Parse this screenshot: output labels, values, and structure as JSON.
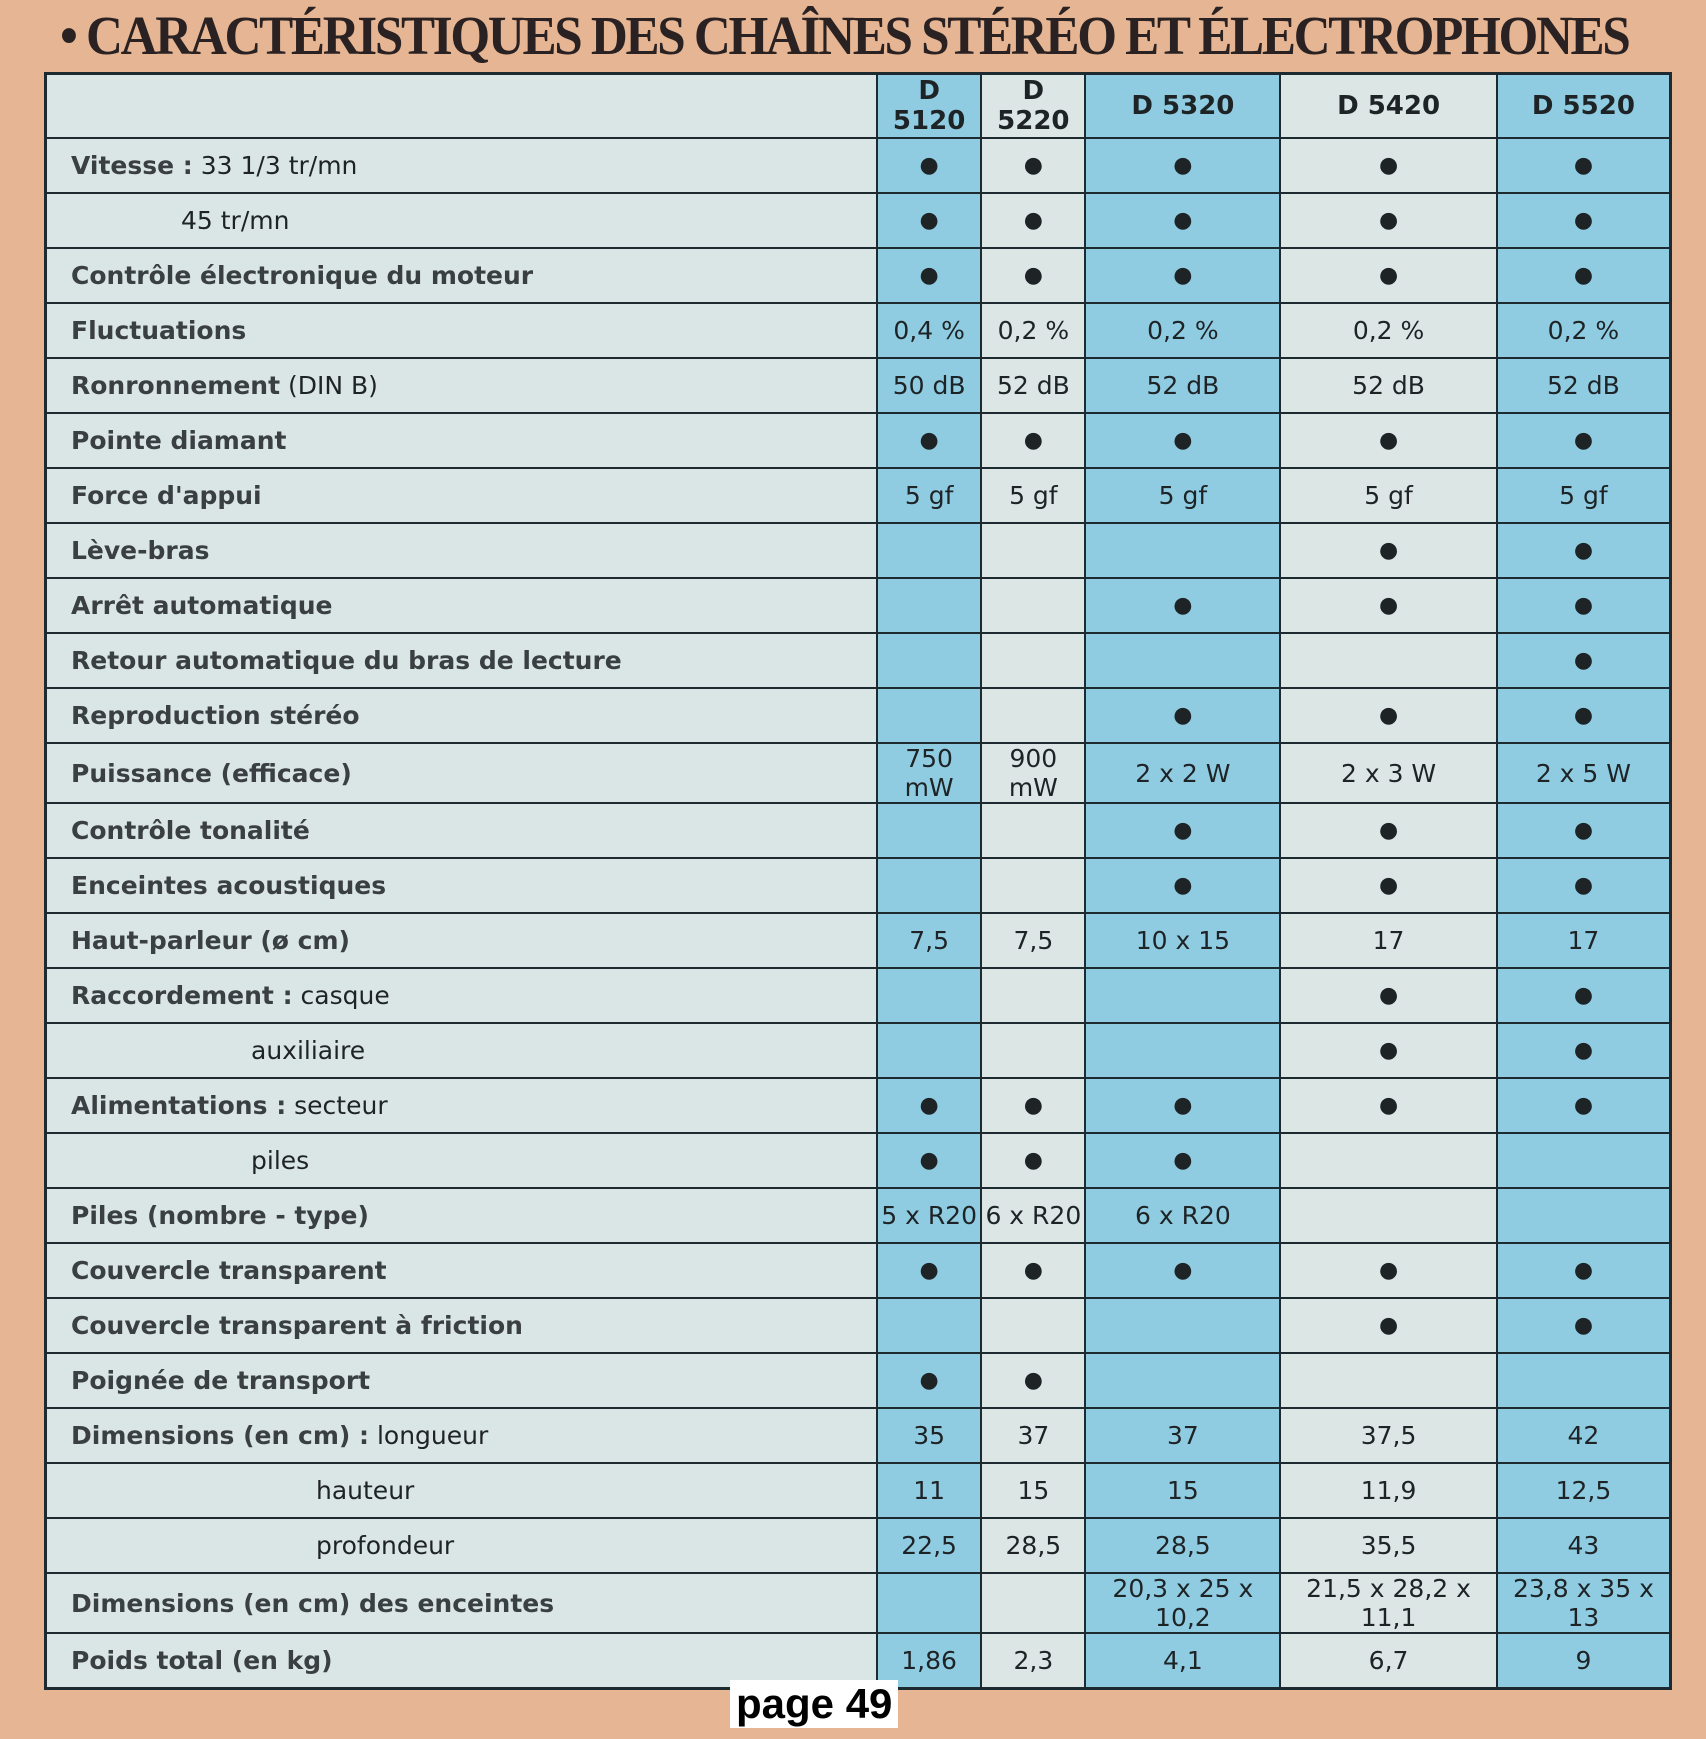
{
  "title": "• CARACTÉRISTIQUES DES CHAÎNES STÉRÉO ET ÉLECTROPHONES",
  "models": [
    "D 5120",
    "D 5220",
    "D 5320",
    "D 5420",
    "D 5520"
  ],
  "colors": {
    "blue_column": "#8fcce2",
    "light_column": "#dbe6e5",
    "page_background": "#e6b594"
  },
  "dot_symbol": "●",
  "rows": [
    {
      "bold": "Vitesse :",
      "light": " 33 1/3 tr/mn",
      "indent": 0,
      "values": [
        "●",
        "●",
        "●",
        "●",
        "●"
      ]
    },
    {
      "bold": "",
      "light": "45 tr/mn",
      "indent": 1,
      "values": [
        "●",
        "●",
        "●",
        "●",
        "●"
      ]
    },
    {
      "bold": "Contrôle électronique du moteur",
      "light": "",
      "indent": 0,
      "values": [
        "●",
        "●",
        "●",
        "●",
        "●"
      ]
    },
    {
      "bold": "Fluctuations",
      "light": "",
      "indent": 0,
      "values": [
        "0,4 %",
        "0,2 %",
        "0,2 %",
        "0,2 %",
        "0,2 %"
      ]
    },
    {
      "bold": "Ronronnement",
      "light": " (DIN B)",
      "indent": 0,
      "values": [
        "50 dB",
        "52 dB",
        "52 dB",
        "52 dB",
        "52 dB"
      ]
    },
    {
      "bold": "Pointe diamant",
      "light": "",
      "indent": 0,
      "values": [
        "●",
        "●",
        "●",
        "●",
        "●"
      ]
    },
    {
      "bold": "Force d'appui",
      "light": "",
      "indent": 0,
      "values": [
        "5 gf",
        "5 gf",
        "5 gf",
        "5 gf",
        "5 gf"
      ]
    },
    {
      "bold": "Lève-bras",
      "light": "",
      "indent": 0,
      "values": [
        "",
        "",
        "",
        "●",
        "●"
      ]
    },
    {
      "bold": "Arrêt automatique",
      "light": "",
      "indent": 0,
      "values": [
        "",
        "",
        "●",
        "●",
        "●"
      ]
    },
    {
      "bold": "Retour automatique du bras de lecture",
      "light": "",
      "indent": 0,
      "values": [
        "",
        "",
        "",
        "",
        "●"
      ]
    },
    {
      "bold": "Reproduction stéréo",
      "light": "",
      "indent": 0,
      "values": [
        "",
        "",
        "●",
        "●",
        "●"
      ]
    },
    {
      "bold": "Puissance (efficace)",
      "light": "",
      "indent": 0,
      "values": [
        "750 mW",
        "900 mW",
        "2 x 2 W",
        "2 x 3 W",
        "2 x 5 W"
      ]
    },
    {
      "bold": "Contrôle tonalité",
      "light": "",
      "indent": 0,
      "values": [
        "",
        "",
        "●",
        "●",
        "●"
      ]
    },
    {
      "bold": "Enceintes acoustiques",
      "light": "",
      "indent": 0,
      "values": [
        "",
        "",
        "●",
        "●",
        "●"
      ]
    },
    {
      "bold": "Haut-parleur (ø cm)",
      "light": "",
      "indent": 0,
      "values": [
        "7,5",
        "7,5",
        "10 x 15",
        "17",
        "17"
      ]
    },
    {
      "bold": "Raccordement :",
      "light": " casque",
      "indent": 0,
      "values": [
        "",
        "",
        "",
        "●",
        "●"
      ]
    },
    {
      "bold": "",
      "light": "auxiliaire",
      "indent": 2,
      "values": [
        "",
        "",
        "",
        "●",
        "●"
      ]
    },
    {
      "bold": "Alimentations :",
      "light": " secteur",
      "indent": 0,
      "values": [
        "●",
        "●",
        "●",
        "●",
        "●"
      ]
    },
    {
      "bold": "",
      "light": "piles",
      "indent": 2,
      "values": [
        "●",
        "●",
        "●",
        "",
        ""
      ]
    },
    {
      "bold": "Piles (nombre - type)",
      "light": "",
      "indent": 0,
      "values": [
        "5 x R20",
        "6 x R20",
        "6 x R20",
        "",
        ""
      ]
    },
    {
      "bold": "Couvercle transparent",
      "light": "",
      "indent": 0,
      "values": [
        "●",
        "●",
        "●",
        "●",
        "●"
      ]
    },
    {
      "bold": "Couvercle transparent à friction",
      "light": "",
      "indent": 0,
      "values": [
        "",
        "",
        "",
        "●",
        "●"
      ]
    },
    {
      "bold": "Poignée de transport",
      "light": "",
      "indent": 0,
      "values": [
        "●",
        "●",
        "",
        "",
        ""
      ]
    },
    {
      "bold": "Dimensions (en cm) :",
      "light": " longueur",
      "indent": 0,
      "values": [
        "35",
        "37",
        "37",
        "37,5",
        "42"
      ]
    },
    {
      "bold": "",
      "light": "hauteur",
      "indent": 3,
      "values": [
        "11",
        "15",
        "15",
        "11,9",
        "12,5"
      ]
    },
    {
      "bold": "",
      "light": "profondeur",
      "indent": 3,
      "values": [
        "22,5",
        "28,5",
        "28,5",
        "35,5",
        "43"
      ]
    },
    {
      "bold": "Dimensions (en cm) des enceintes",
      "light": "",
      "indent": 0,
      "values": [
        "",
        "",
        "20,3 x 25 x 10,2",
        "21,5 x 28,2 x 11,1",
        "23,8 x 35 x 13"
      ]
    },
    {
      "bold": "Poids total (en kg)",
      "light": "",
      "indent": 0,
      "values": [
        "1,86",
        "2,3",
        "4,1",
        "6,7",
        "9"
      ]
    }
  ],
  "page_label": "page 49"
}
